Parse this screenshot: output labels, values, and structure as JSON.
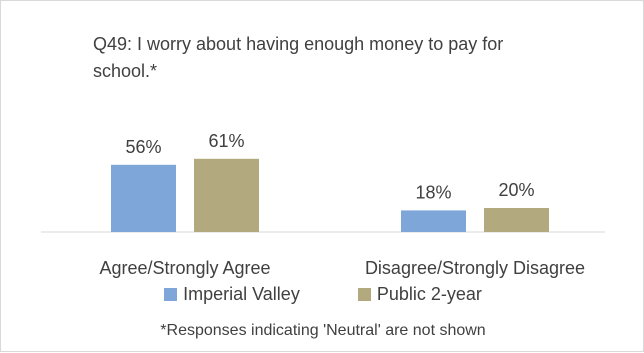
{
  "chart_data": {
    "type": "bar",
    "title": "Q49: I worry about having enough money to pay for school.*",
    "categories": [
      "Agree/Strongly Agree",
      "Disagree/Strongly Disagree"
    ],
    "series": [
      {
        "name": "Imperial Valley",
        "values": [
          56,
          18
        ],
        "labels": [
          "56%",
          "18%"
        ],
        "color": "#7ea6d8"
      },
      {
        "name": "Public 2-year",
        "values": [
          61,
          20
        ],
        "labels": [
          "61%",
          "20%"
        ],
        "color": "#b3a97e"
      }
    ],
    "ylim": [
      0,
      100
    ],
    "grid": false,
    "legend_position": "bottom",
    "footnote": "*Responses indicating 'Neutral' are not shown"
  }
}
